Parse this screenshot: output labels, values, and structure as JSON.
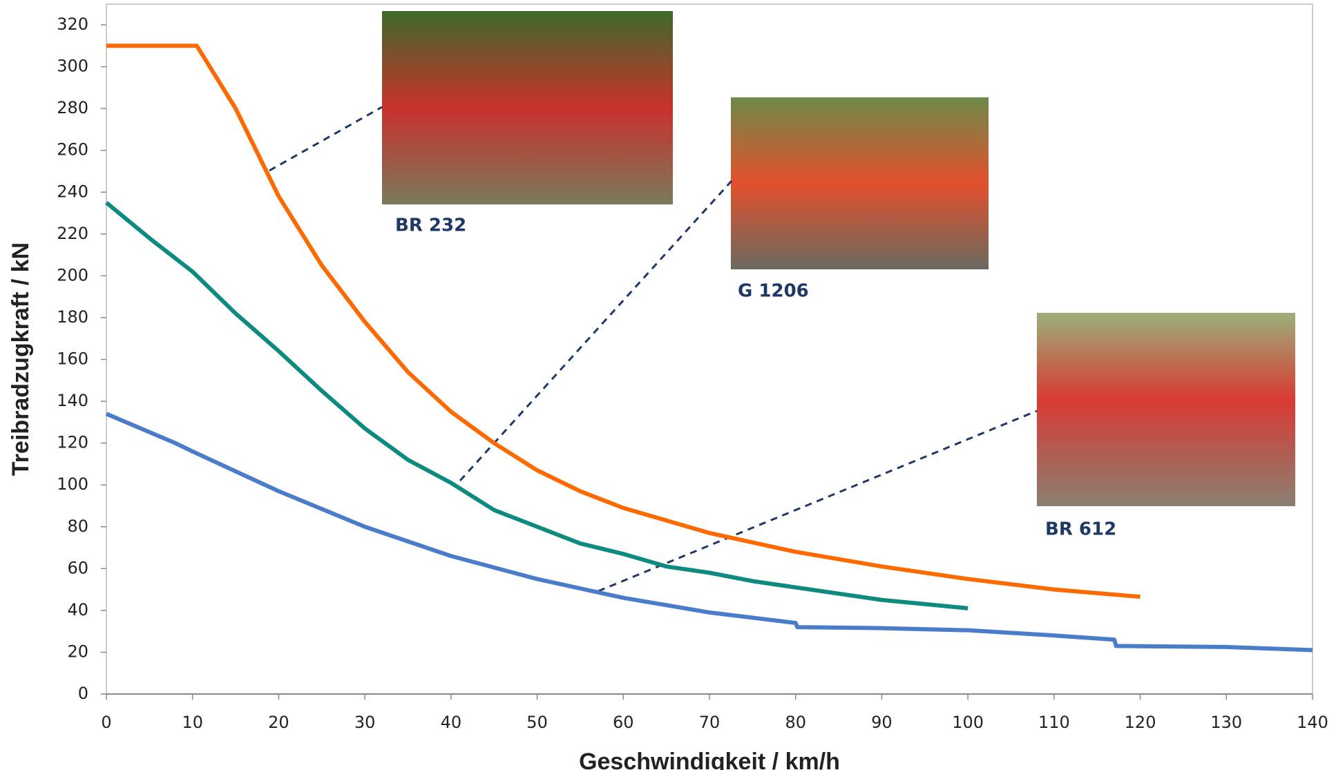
{
  "chart_data": {
    "type": "line",
    "xlabel": "Geschwindigkeit  / km/h",
    "ylabel": "Treibradzugkraft  / kN",
    "xlim": [
      0,
      140
    ],
    "xticks": [
      0,
      10,
      20,
      30,
      40,
      50,
      60,
      70,
      80,
      90,
      100,
      110,
      120,
      130,
      140
    ],
    "ylim": [
      0,
      320
    ],
    "yticks": [
      0,
      20,
      40,
      60,
      80,
      100,
      120,
      140,
      160,
      180,
      200,
      220,
      240,
      260,
      280,
      300,
      320
    ],
    "series": [
      {
        "name": "BR 232",
        "color": "#ff6a00",
        "x": [
          0,
          10.5,
          15,
          20,
          25,
          30,
          35,
          40,
          45,
          50,
          55,
          60,
          70,
          80,
          90,
          100,
          110,
          120
        ],
        "values": [
          310,
          310,
          280,
          238,
          205,
          178,
          154,
          135,
          120,
          107,
          97,
          89,
          77,
          68,
          61,
          55,
          50,
          46.5
        ]
      },
      {
        "name": "G 1206",
        "color": "#0e8a7e",
        "x": [
          0,
          5,
          10,
          15,
          20,
          25,
          30,
          35,
          40,
          45,
          50,
          55,
          60,
          65,
          70,
          75,
          80,
          90,
          100
        ],
        "values": [
          235,
          218,
          202,
          182,
          164,
          145,
          127,
          112,
          101,
          88,
          80,
          72,
          67,
          61,
          58,
          54,
          51,
          45,
          41
        ]
      },
      {
        "name": "BR 612",
        "color": "#4a7cc9",
        "x": [
          0,
          8,
          10,
          20,
          30,
          40,
          50,
          60,
          70,
          80,
          80.2,
          90,
          100,
          110,
          117,
          117.2,
          130,
          140
        ],
        "values": [
          134,
          120,
          116,
          97,
          80,
          66,
          55,
          46,
          39,
          34,
          32,
          31.5,
          30.5,
          28,
          26,
          23,
          22.5,
          21
        ]
      }
    ]
  }
}
